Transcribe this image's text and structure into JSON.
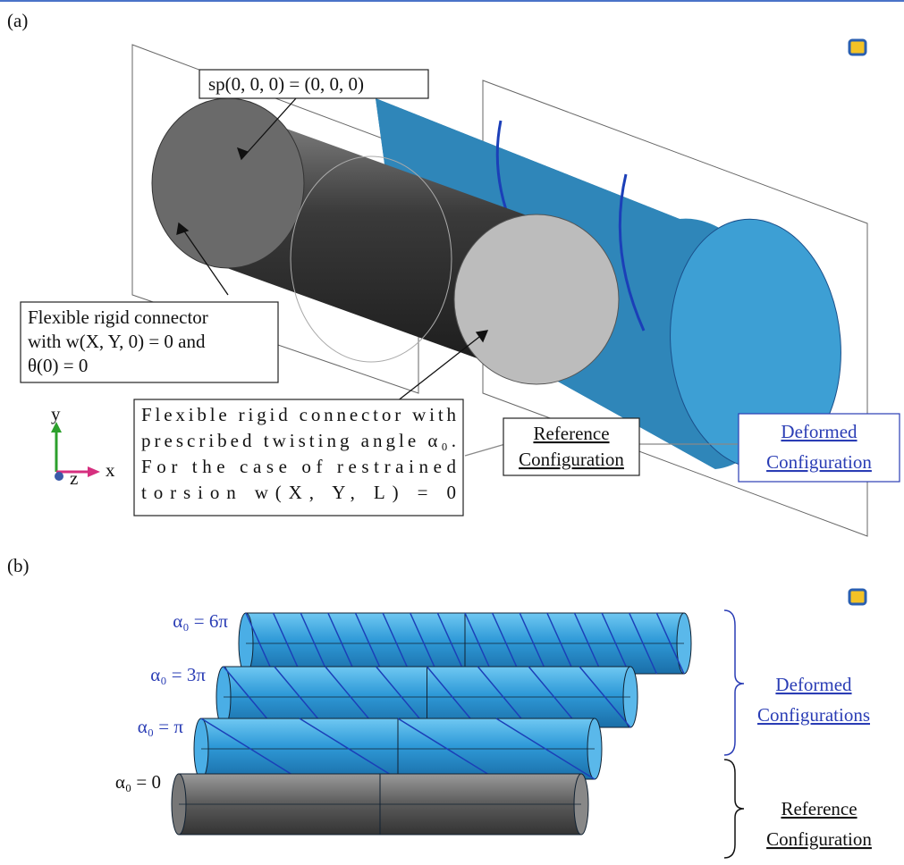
{
  "panel_a": {
    "label": "(a)",
    "origin_note": "sp(0, 0, 0) = (0, 0, 0)",
    "left_connector": [
      "Flexible rigid connector",
      "with w(X, Y, 0) = 0  and",
      "θ(0) = 0"
    ],
    "right_connector": [
      "Flexible rigid connector with",
      "prescribed twisting angle α₀.",
      "For the case of restrained",
      "torsion w(X, Y, L) = 0"
    ],
    "reference": [
      "Reference",
      "Configuration"
    ],
    "deformed": [
      "Deformed",
      "Configuration"
    ],
    "axes": {
      "y": "y",
      "x": "x",
      "z": "z"
    }
  },
  "panel_b": {
    "label": "(b)",
    "cases": [
      "α₀ = 6π",
      "α₀ = 3π",
      "α₀ = π",
      "α₀ = 0"
    ],
    "deformed": [
      "Deformed",
      "Configurations"
    ],
    "reference": [
      "Reference",
      "Configuration"
    ]
  }
}
